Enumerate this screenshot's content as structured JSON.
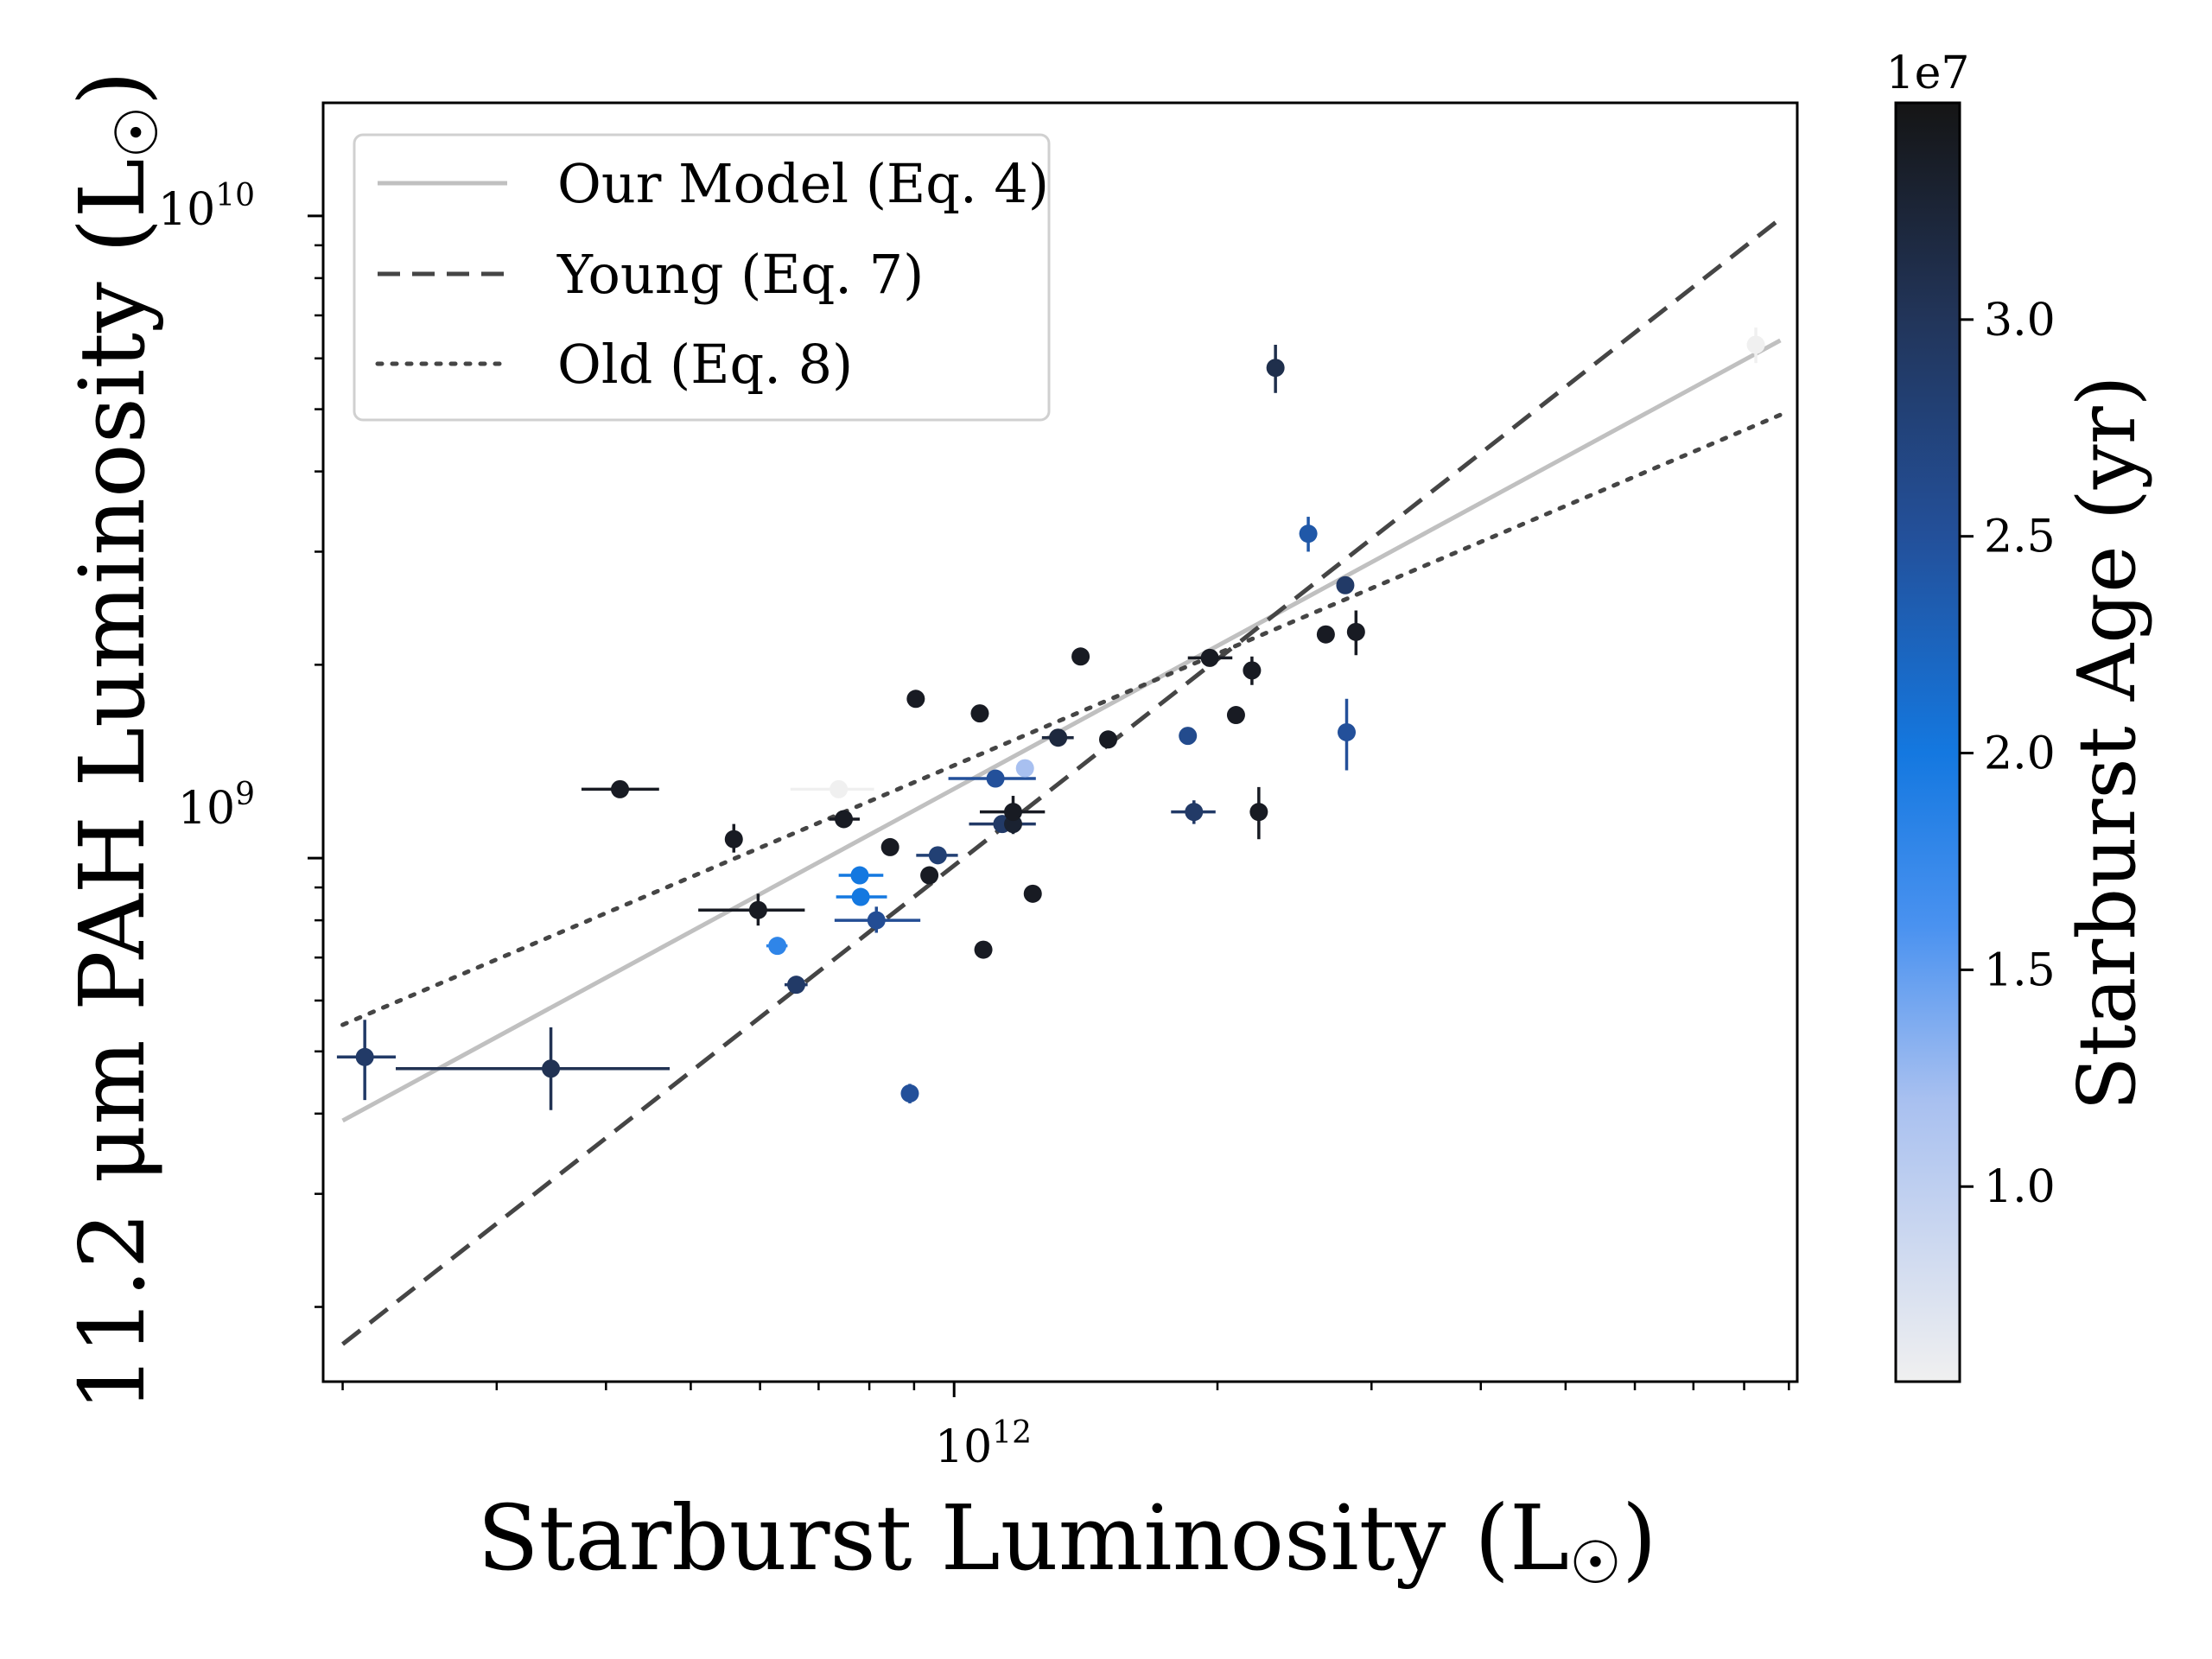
{
  "chart_data": {
    "type": "scatter",
    "xscale": "log",
    "yscale": "log",
    "xlim": [
      190000000000.0,
      9200000000000.0
    ],
    "ylim": [
      153000000.0,
      15000000000.0
    ],
    "xlabel": "Starburst Luminosity (L",
    "ylabel": "11.2 μm PAH Luminosity (L",
    "sun_symbol": "☉",
    "close_paren": ")",
    "x_ticks": [
      {
        "base": "10",
        "exp": "12",
        "value": 1000000000000.0
      }
    ],
    "y_ticks": [
      {
        "base": "10",
        "exp": "9",
        "value": 1000000000.0
      },
      {
        "base": "10",
        "exp": "10",
        "value": 10000000000.0
      }
    ],
    "legend": [
      {
        "label": "Our Model (Eq. 4)",
        "style": "solid",
        "color": "#c0c0c0"
      },
      {
        "label": "Young (Eq. 7)",
        "style": "dashed",
        "color": "#454545"
      },
      {
        "label": "Old (Eq. 8)",
        "style": "dotted",
        "color": "#454545"
      }
    ],
    "lines": [
      {
        "name": "Our Model (Eq. 4)",
        "style": "solid",
        "color": "#c0c0c0",
        "x": [
          200000000000.0,
          8800000000000.0
        ],
        "y": [
          390000000.0,
          6400000000.0
        ]
      },
      {
        "name": "Young (Eq. 7)",
        "style": "dashed",
        "color": "#454545",
        "x": [
          200000000000.0,
          8800000000000.0
        ],
        "y": [
          175000000.0,
          9900000000.0
        ]
      },
      {
        "name": "Old (Eq. 8)",
        "style": "dotted",
        "color": "#454545",
        "x": [
          200000000000.0,
          8800000000000.0
        ],
        "y": [
          550000000.0,
          4900000000.0
        ]
      }
    ],
    "colorbar": {
      "label": "Starburst Age (yr)",
      "offset_text": "1e7",
      "range": [
        0.55,
        3.5
      ],
      "ticks": [
        {
          "value": 1.0,
          "label": "1.0"
        },
        {
          "value": 1.5,
          "label": "1.5"
        },
        {
          "value": 2.0,
          "label": "2.0"
        },
        {
          "value": 2.5,
          "label": "2.5"
        },
        {
          "value": 3.0,
          "label": "3.0"
        }
      ],
      "stops": [
        {
          "v": 0.55,
          "color": "#f0f0f0"
        },
        {
          "v": 1.2,
          "color": "#a8c0f0"
        },
        {
          "v": 1.6,
          "color": "#4a92f0"
        },
        {
          "v": 2.0,
          "color": "#1478e0"
        },
        {
          "v": 2.5,
          "color": "#23509a"
        },
        {
          "v": 3.0,
          "color": "#22355a"
        },
        {
          "v": 3.5,
          "color": "#151515"
        }
      ]
    },
    "points": [
      {
        "x": 212000000000.0,
        "y": 490000000.0,
        "age": 2.9,
        "xlo": 197000000000.0,
        "xhi": 230000000000.0,
        "ylo": 420000000.0,
        "yhi": 560000000.0
      },
      {
        "x": 346000000000.0,
        "y": 470000000.0,
        "age": 3.05,
        "xlo": 230000000000.0,
        "xhi": 473000000000.0,
        "ylo": 405000000.0,
        "yhi": 545000000.0
      },
      {
        "x": 415000000000.0,
        "y": 1280000000.0,
        "age": 3.4,
        "xlo": 375000000000.0,
        "xhi": 460000000000.0
      },
      {
        "x": 560000000000.0,
        "y": 1070000000.0,
        "age": 3.4,
        "ylo": 1020000000.0,
        "yhi": 1130000000.0
      },
      {
        "x": 597000000000.0,
        "y": 830000000.0,
        "age": 3.4,
        "xlo": 510000000000.0,
        "xhi": 675000000000.0,
        "ylo": 785000000.0,
        "yhi": 880000000.0
      },
      {
        "x": 628000000000.0,
        "y": 730000000.0,
        "age": 1.8,
        "xlo": 610000000000.0,
        "xhi": 645000000000.0
      },
      {
        "x": 660000000000.0,
        "y": 635000000.0,
        "age": 2.9,
        "xlo": 640000000000.0,
        "xhi": 680000000000.0
      },
      {
        "x": 738000000000.0,
        "y": 1280000000.0,
        "age": 0.55,
        "xlo": 650000000000.0,
        "xhi": 810000000000.0
      },
      {
        "x": 748000000000.0,
        "y": 1150000000.0,
        "age": 3.4,
        "xlo": 720000000000.0,
        "xhi": 780000000000.0
      },
      {
        "x": 780000000000.0,
        "y": 940000000.0,
        "age": 2.0,
        "xlo": 738000000000.0,
        "xhi": 830000000000.0
      },
      {
        "x": 782000000000.0,
        "y": 870000000.0,
        "age": 2.0,
        "xlo": 733000000000.0,
        "xhi": 838000000000.0
      },
      {
        "x": 815000000000.0,
        "y": 800000000.0,
        "age": 2.55,
        "xlo": 730000000000.0,
        "xhi": 915000000000.0,
        "ylo": 765000000.0,
        "yhi": 840000000.0
      },
      {
        "x": 845000000000.0,
        "y": 1040000000.0,
        "age": 3.4
      },
      {
        "x": 890000000000.0,
        "y": 430000000.0,
        "age": 2.5,
        "ylo": 415000000.0,
        "yhi": 445000000.0
      },
      {
        "x": 904000000000.0,
        "y": 1770000000.0,
        "age": 3.4
      },
      {
        "x": 937000000000.0,
        "y": 940000000.0,
        "age": 3.4
      },
      {
        "x": 958000000000.0,
        "y": 1010000000.0,
        "age": 2.8,
        "xlo": 905000000000.0,
        "xhi": 1010000000000.0
      },
      {
        "x": 1070000000000.0,
        "y": 1680000000.0,
        "age": 3.4
      },
      {
        "x": 1080000000000.0,
        "y": 720000000.0,
        "age": 3.4
      },
      {
        "x": 1115000000000.0,
        "y": 1330000000.0,
        "age": 2.5,
        "xlo": 985000000000.0,
        "xhi": 1240000000000.0,
        "ylo": 1300000000.0,
        "yhi": 1360000000.0
      },
      {
        "x": 1135000000000.0,
        "y": 1130000000.0,
        "age": 2.9,
        "xlo": 1040000000000.0,
        "xhi": 1240000000000.0
      },
      {
        "x": 1168000000000.0,
        "y": 1130000000.0,
        "age": 3.3,
        "ylo": 1090000000.0,
        "yhi": 1190000000.0
      },
      {
        "x": 1168000000000.0,
        "y": 1180000000.0,
        "age": 3.4,
        "xlo": 1070000000000.0,
        "xhi": 1270000000000.0,
        "ylo": 1120000000.0,
        "yhi": 1250000000.0
      },
      {
        "x": 1205000000000.0,
        "y": 1380000000.0,
        "age": 1.2
      },
      {
        "x": 1230000000000.0,
        "y": 880000000.0,
        "age": 3.4
      },
      {
        "x": 1315000000000.0,
        "y": 1540000000.0,
        "age": 3.2,
        "xlo": 1260000000000.0,
        "xhi": 1370000000000.0
      },
      {
        "x": 1395000000000.0,
        "y": 2060000000.0,
        "age": 3.4
      },
      {
        "x": 1500000000000.0,
        "y": 1530000000.0,
        "age": 3.4
      },
      {
        "x": 1850000000000.0,
        "y": 1550000000.0,
        "age": 2.6
      },
      {
        "x": 1880000000000.0,
        "y": 1180000000.0,
        "age": 2.9,
        "xlo": 1770000000000.0,
        "xhi": 1990000000000.0,
        "ylo": 1130000000.0,
        "yhi": 1230000000.0
      },
      {
        "x": 1960000000000.0,
        "y": 2050000000.0,
        "age": 3.4,
        "xlo": 1850000000000.0,
        "xhi": 2080000000000.0
      },
      {
        "x": 2100000000000.0,
        "y": 1670000000.0,
        "age": 3.4
      },
      {
        "x": 2190000000000.0,
        "y": 1960000000.0,
        "age": 3.4,
        "ylo": 1860000000.0,
        "yhi": 2060000000.0
      },
      {
        "x": 2230000000000.0,
        "y": 1180000000.0,
        "age": 3.4,
        "ylo": 1070000000.0,
        "yhi": 1290000000.0
      },
      {
        "x": 2330000000000.0,
        "y": 5800000000.0,
        "age": 3.1,
        "ylo": 5300000000.0,
        "yhi": 6300000000.0
      },
      {
        "x": 2540000000000.0,
        "y": 3200000000.0,
        "age": 2.4,
        "ylo": 3000000000.0,
        "yhi": 3400000000.0
      },
      {
        "x": 2660000000000.0,
        "y": 2230000000.0,
        "age": 3.4
      },
      {
        "x": 2800000000000.0,
        "y": 2660000000.0,
        "age": 2.9
      },
      {
        "x": 2810000000000.0,
        "y": 1570000000.0,
        "age": 2.5,
        "ylo": 1370000000.0,
        "yhi": 1770000000.0
      },
      {
        "x": 2880000000000.0,
        "y": 2250000000.0,
        "age": 3.4,
        "ylo": 2070000000.0,
        "yhi": 2430000000.0
      },
      {
        "x": 8250000000000.0,
        "y": 6300000000.0,
        "age": 0.55,
        "ylo": 5900000000.0,
        "yhi": 6700000000.0
      }
    ]
  }
}
